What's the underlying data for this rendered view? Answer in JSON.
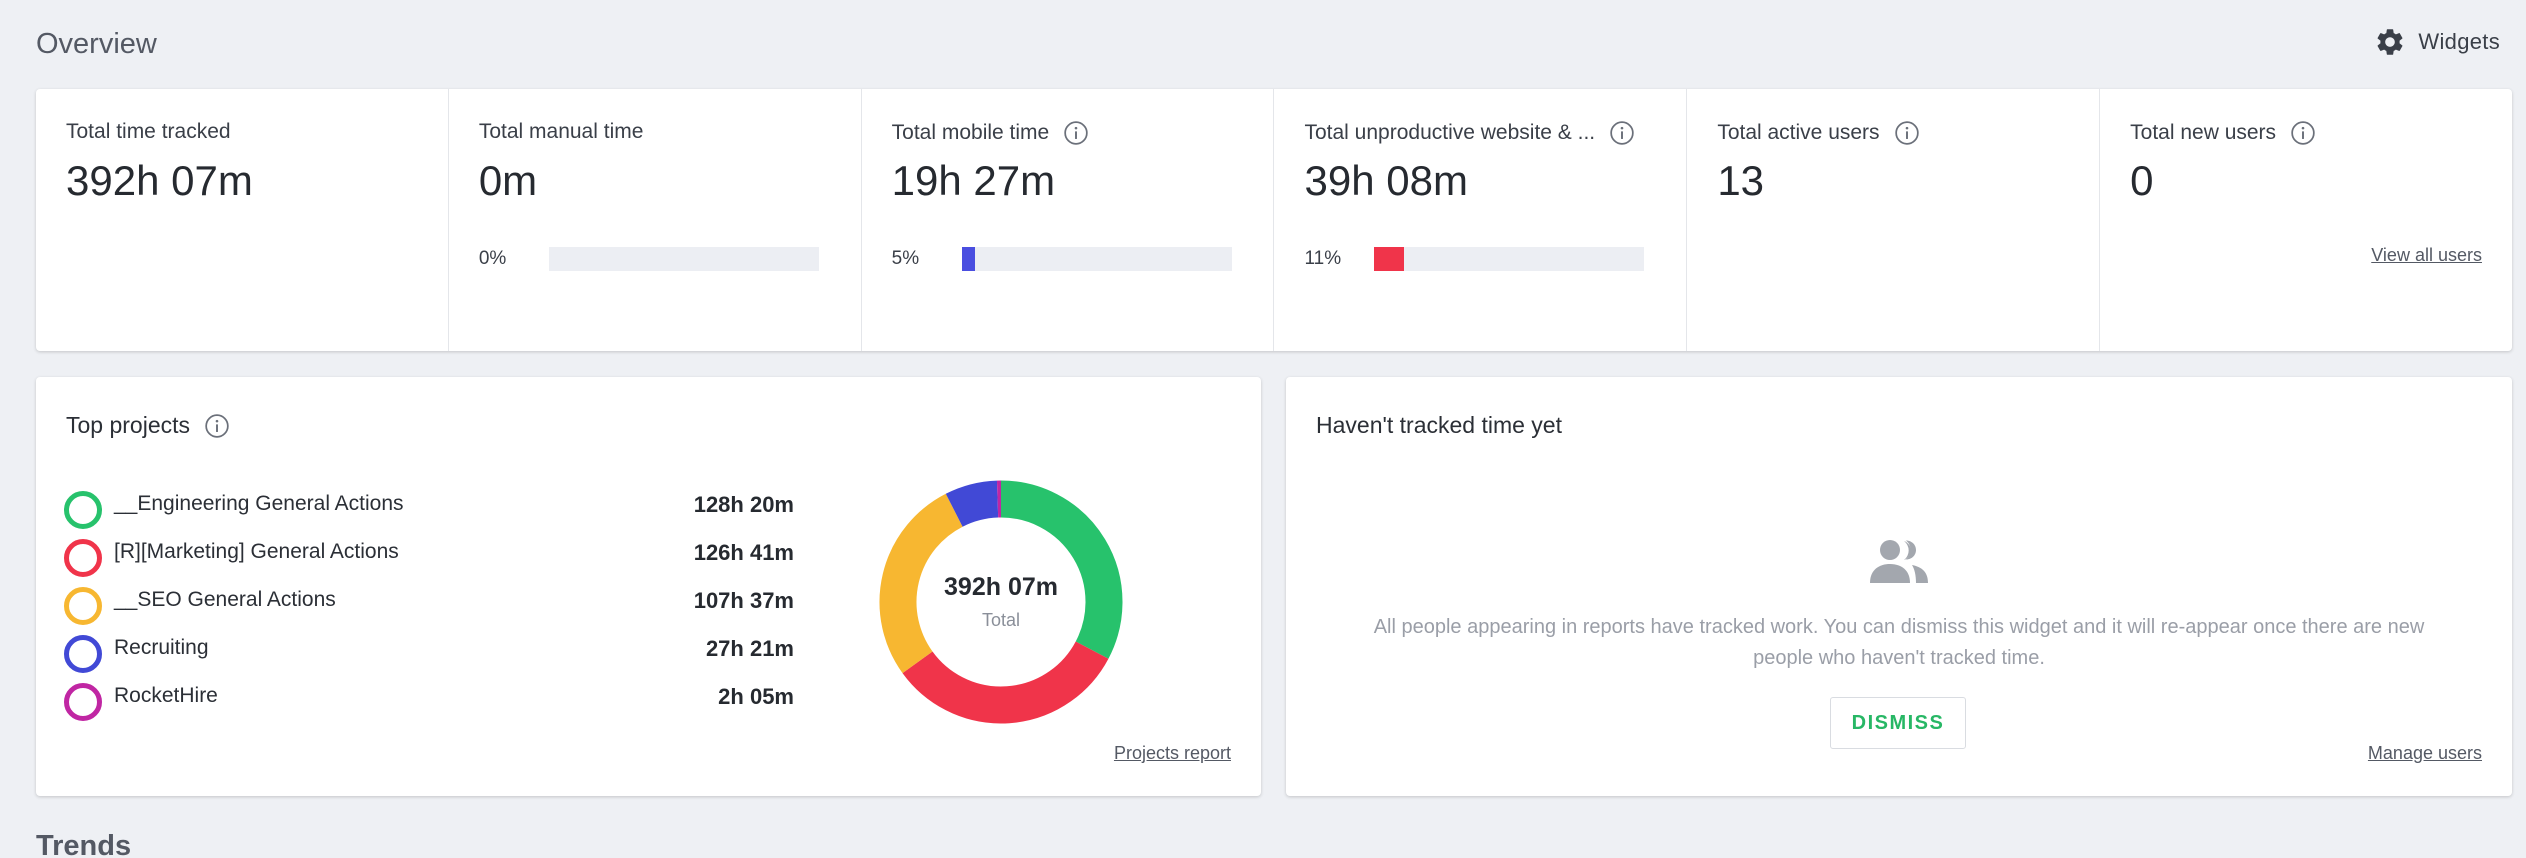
{
  "header": {
    "title": "Overview",
    "widgets_label": "Widgets"
  },
  "stats": [
    {
      "label": "Total time tracked",
      "value": "392h 07m"
    },
    {
      "label": "Total manual time",
      "value": "0m",
      "percent_label": "0%",
      "fraction": 0,
      "bar_color": "#4a4ee0"
    },
    {
      "label": "Total mobile time",
      "value": "19h 27m",
      "percent_label": "5%",
      "fraction": 0.05,
      "bar_color": "#4a4ee0"
    },
    {
      "label": "Total unproductive website & ...",
      "value": "39h 08m",
      "percent_label": "11%",
      "fraction": 0.11,
      "bar_color": "#f0344a"
    },
    {
      "label": "Total active users",
      "value": "13"
    },
    {
      "label": "Total new users",
      "value": "0",
      "link": "View all users"
    }
  ],
  "top_projects": {
    "title": "Top projects",
    "items": [
      {
        "name": "__Engineering General Actions",
        "time": "128h 20m",
        "color": "#27c26c",
        "minutes": 7700
      },
      {
        "name": "[R][Marketing] General Actions",
        "time": "126h 41m",
        "color": "#f0344a",
        "minutes": 7601
      },
      {
        "name": "__SEO General Actions",
        "time": "107h 37m",
        "color": "#f7b731",
        "minutes": 6457
      },
      {
        "name": "Recruiting",
        "time": "27h 21m",
        "color": "#4149d6",
        "minutes": 1641
      },
      {
        "name": "RocketHire",
        "time": "2h 05m",
        "color": "#c026a3",
        "minutes": 125
      }
    ],
    "donut_total": "392h 07m",
    "donut_label": "Total",
    "report_link": "Projects report"
  },
  "untracked": {
    "title": "Haven't tracked time yet",
    "message": "All people appearing in reports have tracked work. You can dismiss this widget and it will re-appear once there are new people who haven't tracked time.",
    "dismiss_label": "DISMISS",
    "manage_link": "Manage users"
  },
  "trends": {
    "title": "Trends"
  },
  "icons": {
    "widgets": "gear-icon",
    "info": "info-icon",
    "people": "people-icon"
  }
}
